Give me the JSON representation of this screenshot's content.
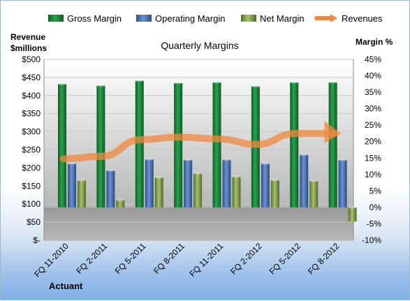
{
  "chart_data": {
    "type": "bar",
    "title": "Quarterly Margins",
    "categories": [
      "FQ 11-2010",
      "FQ 2-2011",
      "FQ 5-2011",
      "FQ 8-2011",
      "FQ 11-2011",
      "FQ 2-2012",
      "FQ 5-2012",
      "FQ 8-2012"
    ],
    "series": [
      {
        "name": "Gross Margin",
        "axis": "right",
        "values": [
          37.5,
          37.0,
          38.5,
          37.8,
          38.0,
          36.8,
          38.0,
          38.0
        ],
        "color": "#1a8a3c"
      },
      {
        "name": "Operating Margin",
        "axis": "right",
        "values": [
          13.3,
          11.2,
          14.6,
          14.4,
          14.5,
          13.3,
          16.0,
          14.4
        ],
        "color": "#4f7ec4"
      },
      {
        "name": "Net Margin",
        "axis": "right",
        "values": [
          8.2,
          2.2,
          9.1,
          10.3,
          9.3,
          8.3,
          8.0,
          -4.3
        ],
        "color": "#8fb05a"
      },
      {
        "name": "Revenues",
        "axis": "left",
        "type": "line",
        "values": [
          225,
          232,
          278,
          285,
          280,
          265,
          295,
          295
        ],
        "color": "#f0883e"
      }
    ],
    "left_axis": {
      "label_line1": "Revenue",
      "label_line2": "$millions",
      "ylim": [
        0,
        500
      ],
      "ticks": [
        "$-",
        "$50",
        "$100",
        "$150",
        "$200",
        "$250",
        "$300",
        "$350",
        "$400",
        "$450",
        "$500"
      ]
    },
    "right_axis": {
      "label": "Margin %",
      "ylim": [
        -10,
        45
      ],
      "ticks": [
        "-10%",
        "-5%",
        "0%",
        "5%",
        "10%",
        "15%",
        "20%",
        "25%",
        "30%",
        "35%",
        "40%",
        "45%"
      ]
    },
    "legend": [
      "Gross Margin",
      "Operating Margin",
      "Net Margin",
      "Revenues"
    ],
    "legend_position": "top",
    "grid": true
  },
  "footer": {
    "company": "Actuant"
  }
}
